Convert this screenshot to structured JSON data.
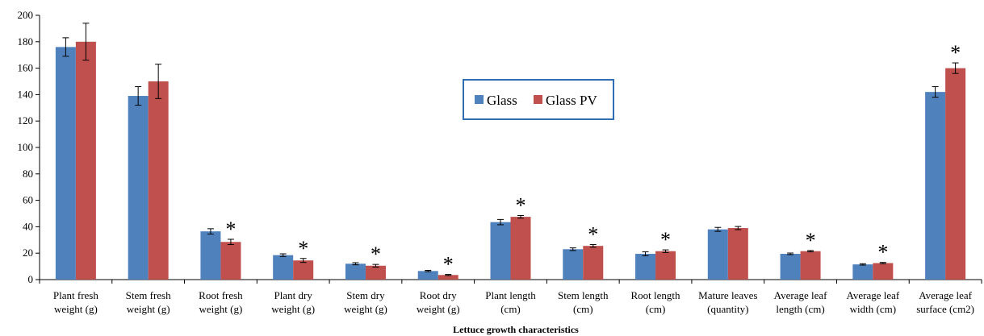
{
  "chart_data": {
    "type": "bar",
    "title": "",
    "xlabel": "Lettuce growth characteristics",
    "ylabel": "",
    "ylim": [
      0,
      200
    ],
    "yticks": [
      0,
      20,
      40,
      60,
      80,
      100,
      120,
      140,
      160,
      180,
      200
    ],
    "grid": false,
    "legend_position": "center",
    "categories": [
      [
        "Plant fresh",
        "weight (g)"
      ],
      [
        "Stem fresh",
        "weight (g)"
      ],
      [
        "Root fresh",
        "weight (g)"
      ],
      [
        "Plant dry",
        "weight (g)"
      ],
      [
        "Stem dry",
        "weight (g)"
      ],
      [
        "Root dry",
        "weight (g)"
      ],
      [
        "Plant length",
        "(cm)"
      ],
      [
        "Stem length",
        "(cm)"
      ],
      [
        "Root length",
        "(cm)"
      ],
      [
        "Mature leaves",
        "(quantity)"
      ],
      [
        "Average leaf",
        "length (cm)"
      ],
      [
        "Average leaf",
        "width (cm)"
      ],
      [
        "Average leaf",
        "surface (cm2)"
      ]
    ],
    "series": [
      {
        "name": "Glass",
        "color": "#4f81bd",
        "values": [
          176,
          139,
          36.5,
          18.5,
          12,
          6.5,
          43.5,
          23,
          19.5,
          38,
          19.5,
          11.5,
          142
        ],
        "errors": [
          7,
          7,
          2,
          1,
          0.8,
          0.5,
          2,
          1,
          1.5,
          1.5,
          0.6,
          0.5,
          4
        ]
      },
      {
        "name": "Glass PV",
        "color": "#c0504d",
        "values": [
          180,
          150,
          28.5,
          14.5,
          10.5,
          3.5,
          47.5,
          25.5,
          21.5,
          39,
          21.5,
          12.5,
          160
        ],
        "errors": [
          14,
          13,
          2,
          1.5,
          1,
          0.4,
          1,
          1,
          1,
          1.2,
          0.5,
          0.5,
          4
        ]
      }
    ],
    "significance_marker": "*",
    "significant": [
      false,
      false,
      true,
      true,
      true,
      true,
      true,
      true,
      true,
      false,
      true,
      true,
      true
    ]
  }
}
